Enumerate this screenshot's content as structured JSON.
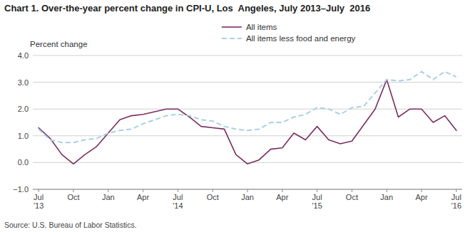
{
  "chart_data": {
    "type": "line",
    "title": "Chart 1. Over-the-year percent change in CPI-U, Los  Angeles, July 2013–July  2016",
    "y_label": "Percent change",
    "source": "Source: U.S. Bureau of Labor Statistics.",
    "categories": [
      "Jul\n'13",
      null,
      null,
      "Oct",
      null,
      null,
      "Jan",
      null,
      null,
      "Apr",
      null,
      null,
      "Jul\n'14",
      null,
      null,
      "Oct",
      null,
      null,
      "Jan",
      null,
      null,
      "Apr",
      null,
      null,
      "Jul\n'15",
      null,
      null,
      "Oct",
      null,
      null,
      "Jan",
      null,
      null,
      "Apr",
      null,
      null,
      "Jul\n'16"
    ],
    "series": [
      {
        "name": "All items",
        "color": "#7B2D5E",
        "line_style": "solid",
        "values": [
          1.3,
          0.9,
          0.3,
          -0.05,
          0.3,
          0.6,
          1.1,
          1.6,
          1.75,
          1.8,
          1.9,
          2.0,
          2.0,
          1.7,
          1.35,
          1.3,
          1.25,
          0.3,
          -0.05,
          0.1,
          0.5,
          0.55,
          1.1,
          0.85,
          1.35,
          0.85,
          0.7,
          0.8,
          1.4,
          2.0,
          3.1,
          1.7,
          2.0,
          2.0,
          1.5,
          1.75,
          1.2
        ]
      },
      {
        "name": "All items less food and energy",
        "color": "#A8D0E6",
        "line_style": "dashed",
        "values": [
          1.25,
          0.85,
          0.75,
          0.75,
          0.85,
          0.9,
          1.1,
          1.2,
          1.25,
          1.45,
          1.6,
          1.75,
          1.8,
          1.75,
          1.6,
          1.55,
          1.35,
          1.25,
          1.2,
          1.25,
          1.5,
          1.5,
          1.7,
          1.8,
          2.05,
          2.0,
          1.8,
          2.05,
          2.1,
          2.6,
          3.1,
          3.05,
          3.1,
          3.4,
          3.1,
          3.4,
          3.2
        ]
      }
    ],
    "ylim": [
      -1.0,
      4.0
    ],
    "yticks": [
      {
        "value": -1.0,
        "label": "−1.0"
      },
      {
        "value": 0.0,
        "label": "0.0"
      },
      {
        "value": 1.0,
        "label": "1.0"
      },
      {
        "value": 2.0,
        "label": "2.0"
      },
      {
        "value": 3.0,
        "label": "3.0"
      },
      {
        "value": 4.0,
        "label": "4.0"
      }
    ],
    "grid": true,
    "legend": "top"
  }
}
